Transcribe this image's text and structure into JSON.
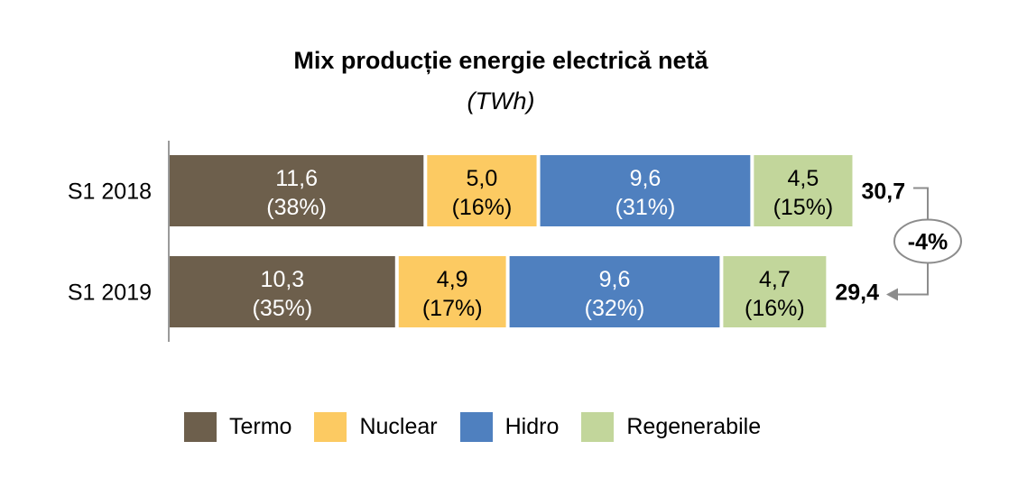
{
  "chart_data": {
    "type": "bar",
    "orientation": "horizontal",
    "stacked": true,
    "title": "Mix producție energie electrică netă",
    "subtitle": "(TWh)",
    "categories": [
      "S1 2018",
      "S1 2019"
    ],
    "series": [
      {
        "name": "Termo",
        "color": "#6d5f4c",
        "values": [
          11.6,
          10.3
        ],
        "labels": [
          "11,6",
          "10,3"
        ],
        "shares": [
          "(38%)",
          "(35%)"
        ]
      },
      {
        "name": "Nuclear",
        "color": "#fcca62",
        "values": [
          5.0,
          4.9
        ],
        "labels": [
          "5,0",
          "4,9"
        ],
        "shares": [
          "(16%)",
          "(17%)"
        ]
      },
      {
        "name": "Hidro",
        "color": "#4f80bf",
        "values": [
          9.6,
          9.6
        ],
        "labels": [
          "9,6",
          "9,6"
        ],
        "shares": [
          "(31%)",
          "(32%)"
        ]
      },
      {
        "name": "Regenerabile",
        "color": "#c2d69b",
        "values": [
          4.5,
          4.7
        ],
        "labels": [
          "4,5",
          "4,7"
        ],
        "shares": [
          "(15%)",
          "(16%)"
        ]
      }
    ],
    "totals": [
      "30,7",
      "29,4"
    ],
    "change_label": "-4%",
    "legend_position": "bottom",
    "grid": false
  }
}
